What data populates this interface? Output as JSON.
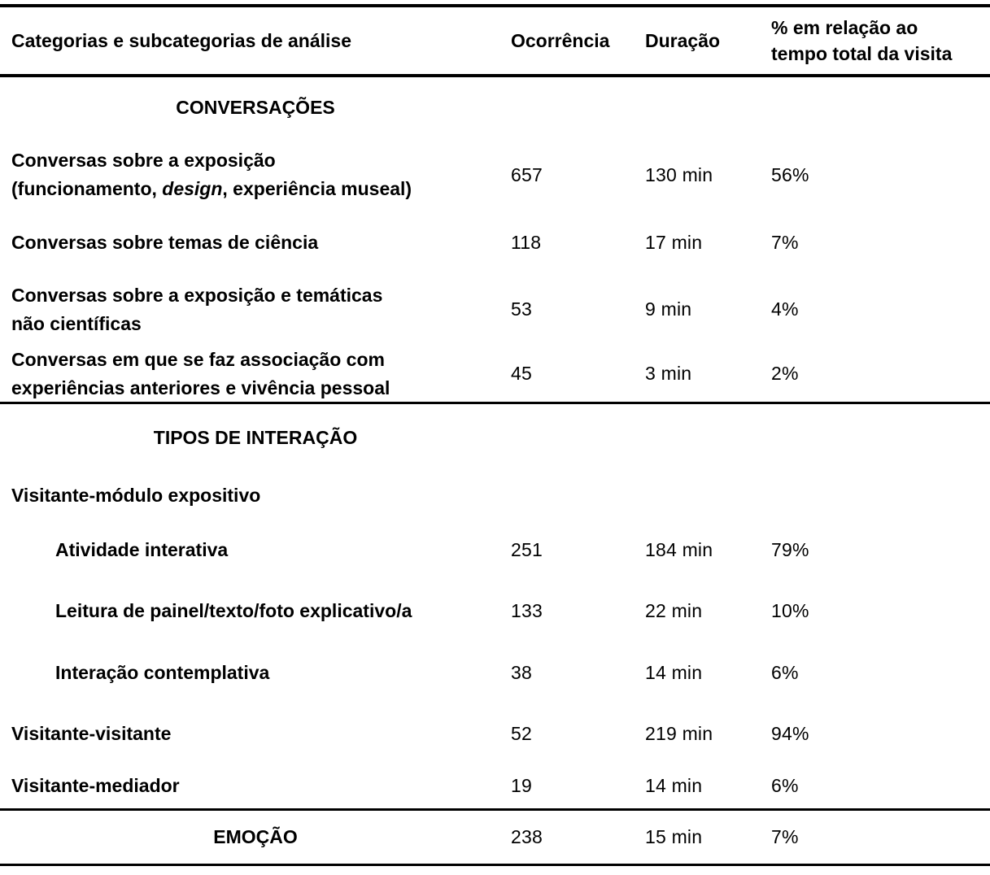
{
  "header": {
    "category": "Categorias e subcategorias de análise",
    "occurrence": "Ocorrência",
    "duration": "Duração",
    "percent_line1": "% em relação ao",
    "percent_line2": "tempo total da visita"
  },
  "sections": {
    "conversations": {
      "title": "CONVERSAÇÕES",
      "rows": [
        {
          "label1": "Conversas sobre a exposição",
          "label2_pre": "(funcionamento, ",
          "label2_italic": "design",
          "label2_post": ", experiência museal)",
          "occurrence": "657",
          "duration": "130 min",
          "percent": "56%"
        },
        {
          "label1": "Conversas sobre temas de ciência",
          "occurrence": "118",
          "duration": "17 min",
          "percent": "7%"
        },
        {
          "label1": "Conversas sobre a exposição e temáticas",
          "label2": "não científicas",
          "occurrence": "53",
          "duration": "9 min",
          "percent": "4%"
        },
        {
          "label1": "Conversas em que se faz associação com",
          "label2": "experiências anteriores e vivência pessoal",
          "occurrence": "45",
          "duration": "3 min",
          "percent": "2%"
        }
      ]
    },
    "interaction_types": {
      "title": "TIPOS DE INTERAÇÃO",
      "rows": [
        {
          "label1": "Visitante-módulo expositivo",
          "occurrence": "",
          "duration": "",
          "percent": ""
        },
        {
          "label1": "Atividade interativa",
          "occurrence": "251",
          "duration": "184 min",
          "percent": "79%"
        },
        {
          "label1": "Leitura de painel/texto/foto explicativo/a",
          "occurrence": "133",
          "duration": "22 min",
          "percent": "10%"
        },
        {
          "label1": "Interação contemplativa",
          "occurrence": "38",
          "duration": "14 min",
          "percent": "6%"
        },
        {
          "label1": "Visitante-visitante",
          "occurrence": "52",
          "duration": "219 min",
          "percent": "94%"
        },
        {
          "label1": "Visitante-mediador",
          "occurrence": "19",
          "duration": "14 min",
          "percent": "6%"
        }
      ]
    },
    "emotion": {
      "title": "EMOÇÃO",
      "occurrence": "238",
      "duration": "15 min",
      "percent": "7%"
    }
  }
}
